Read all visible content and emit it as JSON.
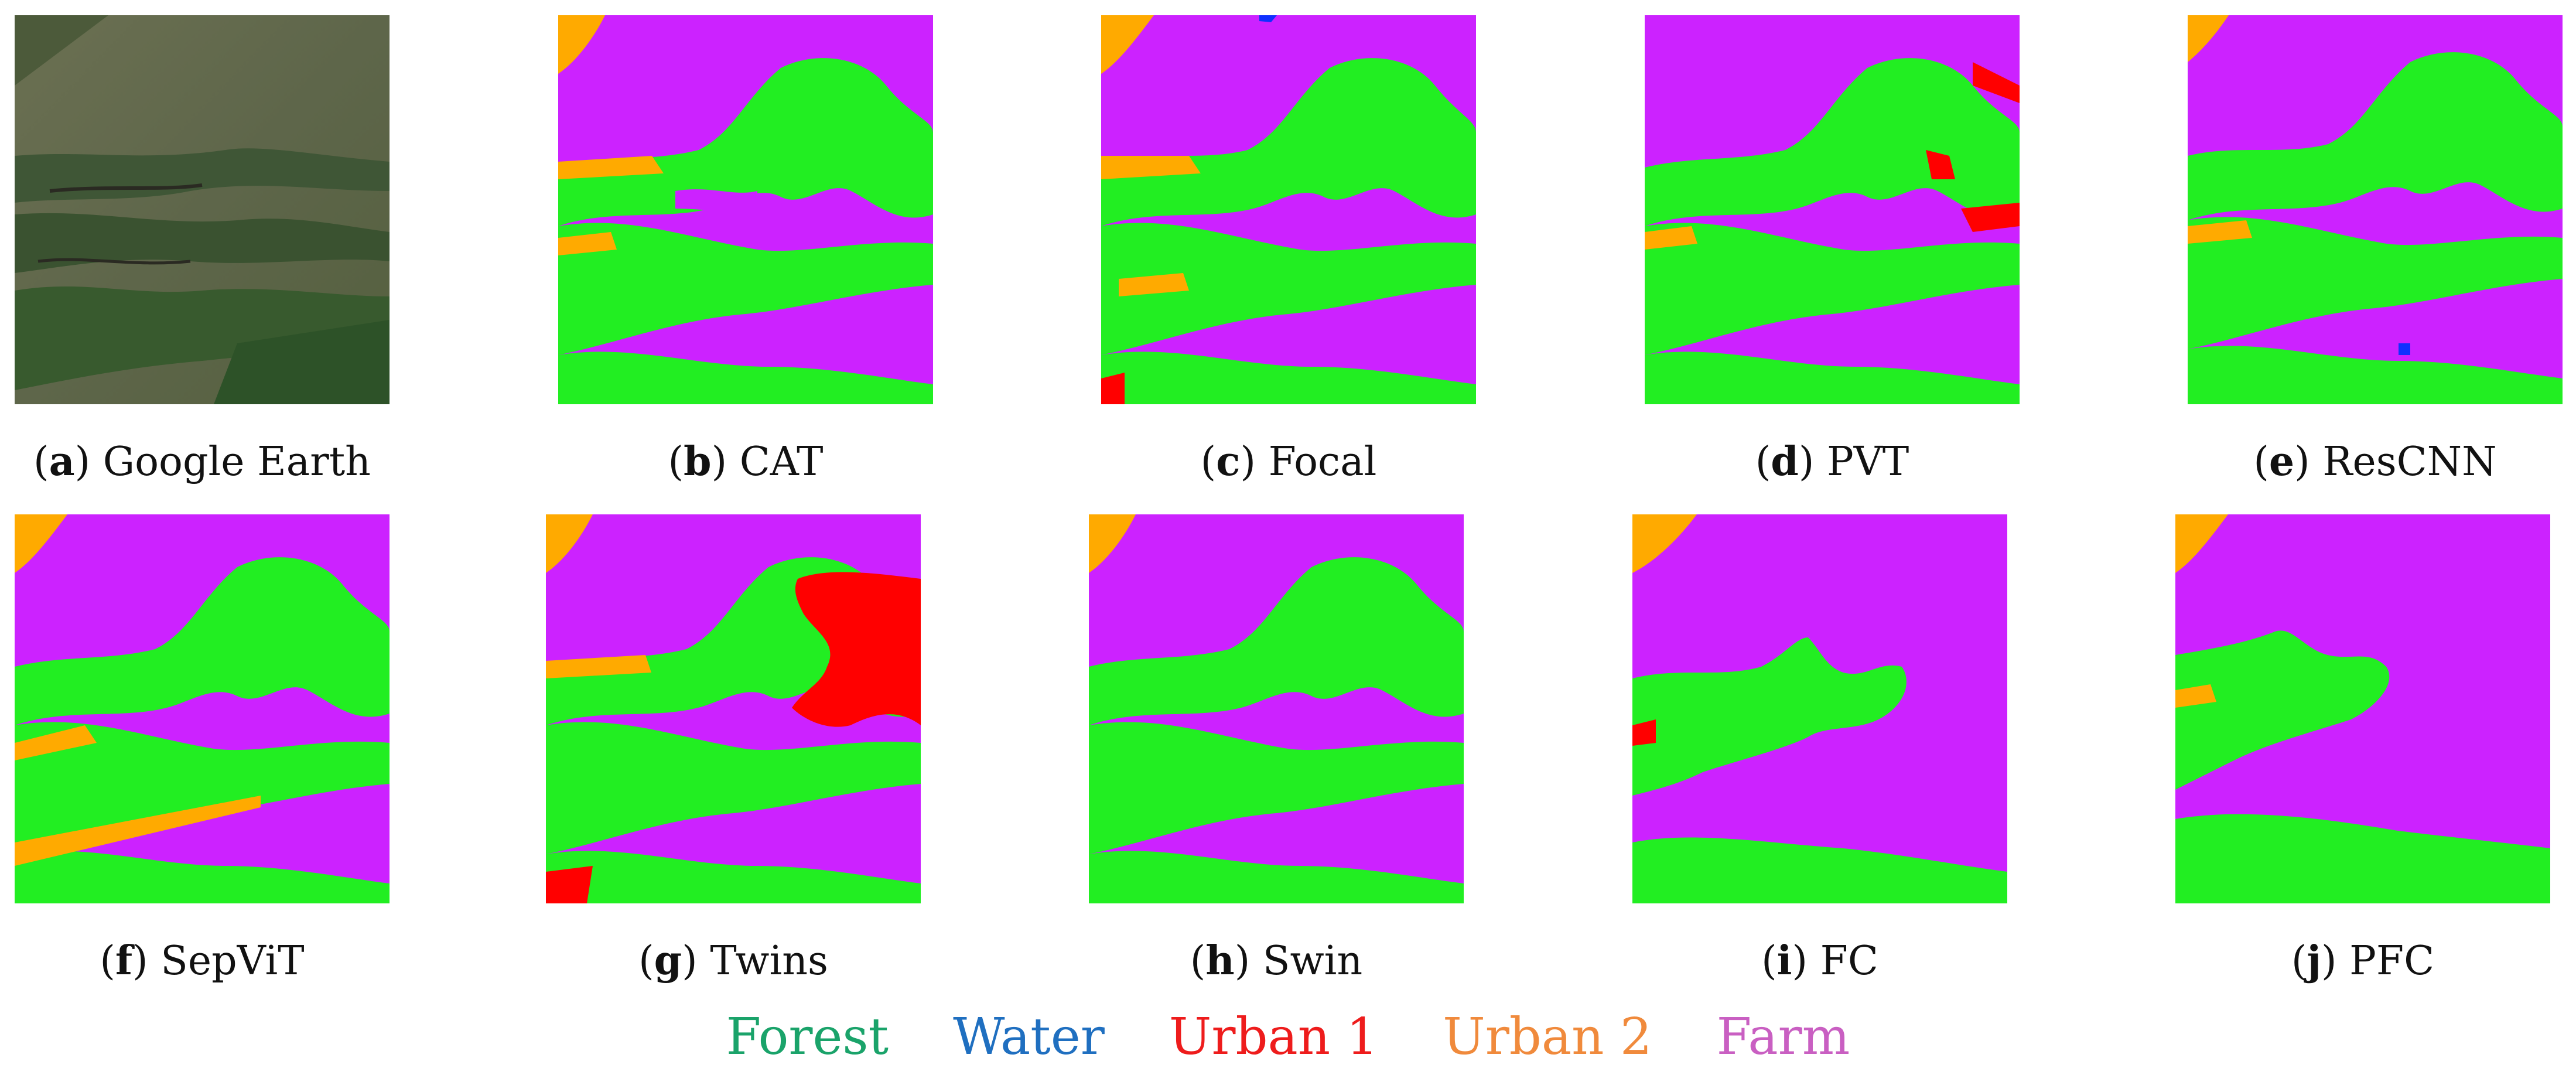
{
  "panels": [
    {
      "id": "a",
      "label": "Google Earth",
      "kind": "satellite-photo"
    },
    {
      "id": "b",
      "label": "CAT",
      "kind": "segmentation-map"
    },
    {
      "id": "c",
      "label": "Focal",
      "kind": "segmentation-map"
    },
    {
      "id": "d",
      "label": "PVT",
      "kind": "segmentation-map"
    },
    {
      "id": "e",
      "label": "ResCNN",
      "kind": "segmentation-map"
    },
    {
      "id": "f",
      "label": "SepViT",
      "kind": "segmentation-map"
    },
    {
      "id": "g",
      "label": "Twins",
      "kind": "segmentation-map"
    },
    {
      "id": "h",
      "label": "Swin",
      "kind": "segmentation-map"
    },
    {
      "id": "i",
      "label": "FC",
      "kind": "segmentation-map"
    },
    {
      "id": "j",
      "label": "PFC",
      "kind": "segmentation-map"
    }
  ],
  "legend": [
    {
      "label": "Forest",
      "color": "#1aa36a"
    },
    {
      "label": "Water",
      "color": "#1f6fc0"
    },
    {
      "label": "Urban 1",
      "color": "#ee1c1c"
    },
    {
      "label": "Urban 2",
      "color": "#f08a3c"
    },
    {
      "label": "Farm",
      "color": "#c95fc2"
    }
  ],
  "class_fill_colors": {
    "forest": "#22ee22",
    "water": "#1030ff",
    "urban1": "#ff0000",
    "urban2": "#ffaa00",
    "farm": "#cc22ff"
  }
}
